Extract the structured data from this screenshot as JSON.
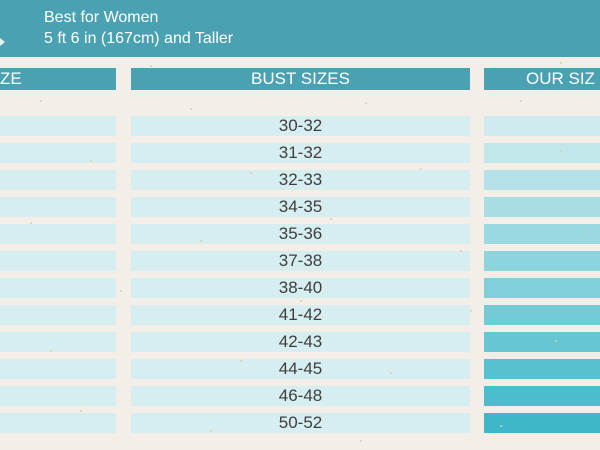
{
  "banner": {
    "line1": "Best for Women",
    "line2": "5 ft 6 in (167cm) and Taller"
  },
  "columns": {
    "left_header": "ZE",
    "middle_header": "BUST SIZES",
    "right_header": "OUR SIZ"
  },
  "bust_sizes": [
    "30-32",
    "31-32",
    "32-33",
    "34-35",
    "35-36",
    "37-38",
    "38-40",
    "41-42",
    "42-43",
    "44-45",
    "46-48",
    "50-52"
  ],
  "colors": {
    "banner": "#4aa1b2",
    "background": "#f3efe8",
    "row_light": "#d7eef1",
    "row_dark_right": "#3eb8c8"
  }
}
